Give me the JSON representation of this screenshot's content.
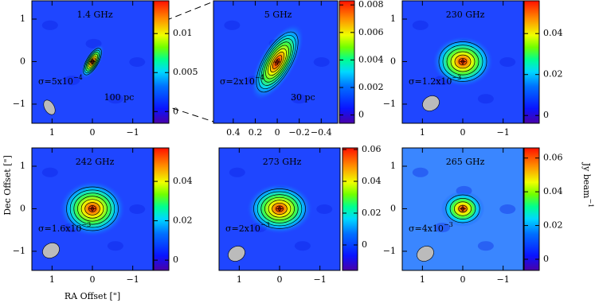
{
  "chart_data": [
    {
      "type": "image",
      "title": "1.4 GHz",
      "sigma": {
        "text": "σ=5x10",
        "exponent": "−4"
      },
      "scale_bar": "100 pc",
      "xlim": [
        1.5,
        -1.5
      ],
      "ylim": [
        -1.45,
        1.43
      ],
      "xticks": [
        1,
        0,
        {
          "value": -1,
          "label": "−1"
        }
      ],
      "yticks": [
        {
          "value": -1,
          "label": "−1"
        },
        0,
        1
      ],
      "clim": [
        -0.0015,
        0.0142
      ],
      "cticks": [
        0,
        0.005,
        0.01
      ]
    },
    {
      "type": "image",
      "title": "5 GHz",
      "sigma": {
        "text": "σ=2x10",
        "exponent": "−4"
      },
      "scale_bar": "30 pc",
      "xlim": [
        0.58,
        -0.55
      ],
      "ylim": [
        -0.56,
        0.56
      ],
      "xticks": [
        0.4,
        0.2,
        0,
        {
          "value": -0.2,
          "label": "−0.2"
        },
        {
          "value": -0.4,
          "label": "−0.4"
        }
      ],
      "clim": [
        -0.0006,
        0.0083
      ],
      "cticks": [
        0,
        0.002,
        0.004,
        0.006,
        0.008
      ]
    },
    {
      "type": "image",
      "title": "230 GHz",
      "sigma": {
        "text": "σ=1.2x10",
        "exponent": "−3"
      },
      "xlim": [
        1.5,
        -1.5
      ],
      "ylim": [
        -1.45,
        1.43
      ],
      "xticks": [
        1,
        0,
        {
          "value": -1,
          "label": "−1"
        }
      ],
      "yticks": [
        {
          "value": -1,
          "label": "−1"
        },
        0,
        1
      ],
      "clim": [
        -0.0038,
        0.056
      ],
      "cticks": [
        0,
        0.02,
        0.04
      ]
    },
    {
      "type": "image",
      "title": "242 GHz",
      "sigma": {
        "text": "σ=1.6x10",
        "exponent": "−3"
      },
      "xlim": [
        1.5,
        -1.5
      ],
      "ylim": [
        -1.45,
        1.43
      ],
      "xticks": [
        1,
        0,
        {
          "value": -1,
          "label": "−1"
        }
      ],
      "yticks": [
        {
          "value": -1,
          "label": "−1"
        },
        0,
        1
      ],
      "clim": [
        -0.0052,
        0.057
      ],
      "cticks": [
        0,
        0.02,
        0.04
      ],
      "xlabel": "RA Offset [\"]",
      "ylabel": "Dec Offset [\"]"
    },
    {
      "type": "image",
      "title": "273 GHz",
      "sigma": {
        "text": "σ=2x10",
        "exponent": "−3"
      },
      "xlim": [
        1.5,
        -1.5
      ],
      "ylim": [
        -1.45,
        1.43
      ],
      "xticks": [
        1,
        0,
        {
          "value": -1,
          "label": "−1"
        }
      ],
      "clim": [
        -0.016,
        0.061
      ],
      "cticks": [
        0,
        0.02,
        0.04,
        0.06
      ]
    },
    {
      "type": "image",
      "title": "265 GHz",
      "sigma": {
        "text": "σ=4x10",
        "exponent": "−3"
      },
      "xlim": [
        1.5,
        -1.5
      ],
      "ylim": [
        -1.45,
        1.43
      ],
      "xticks": [
        1,
        0,
        {
          "value": -1,
          "label": "−1"
        }
      ],
      "yticks": [
        {
          "value": -1,
          "label": "−1"
        },
        0,
        1
      ],
      "clim": [
        -0.0066,
        0.066
      ],
      "cticks": [
        0,
        0.02,
        0.04,
        0.06
      ],
      "colorbar_label": {
        "text": "Jy beam",
        "exponent": "−1"
      }
    }
  ]
}
